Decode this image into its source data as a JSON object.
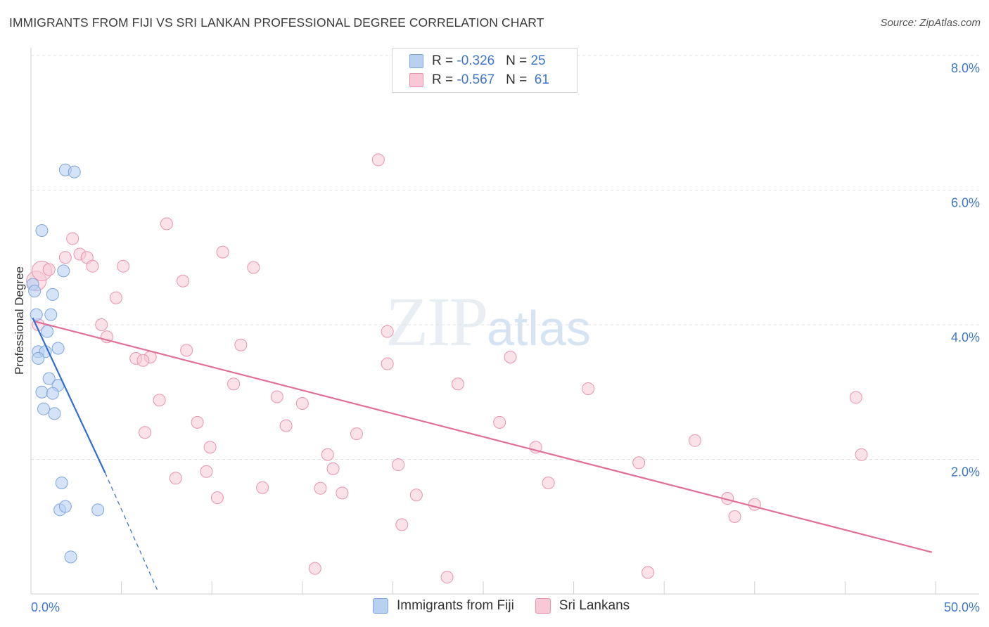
{
  "title": "IMMIGRANTS FROM FIJI VS SRI LANKAN PROFESSIONAL DEGREE CORRELATION CHART",
  "source": "Source: ZipAtlas.com",
  "watermark": {
    "zip": "ZIP",
    "atlas": "atlas"
  },
  "legend_top": {
    "rows": [
      {
        "r_label": "R = ",
        "r_value": "-0.326",
        "n_label": "N = ",
        "n_value": "25",
        "color": "#b8d1f1",
        "border": "#7fa6dc"
      },
      {
        "r_label": "R = ",
        "r_value": "-0.567",
        "n_label": "N = ",
        "n_value": " 61",
        "color": "#f8c8d6",
        "border": "#ea93ae"
      }
    ]
  },
  "chart_data": {
    "type": "scatter",
    "title": "IMMIGRANTS FROM FIJI VS SRI LANKAN PROFESSIONAL DEGREE CORRELATION CHART",
    "xlabel": "",
    "ylabel": "Professional Degree",
    "xlim": [
      0,
      50
    ],
    "ylim": [
      0,
      8
    ],
    "x_tick_labels": [
      "0.0%",
      "50.0%"
    ],
    "y_ticks": [
      2,
      4,
      6,
      8
    ],
    "y_tick_labels": [
      "2.0%",
      "4.0%",
      "6.0%",
      "8.0%"
    ],
    "x_minor_ticks": [
      0,
      5,
      10,
      15,
      20,
      25,
      30,
      35,
      40,
      45,
      50
    ],
    "grid": true,
    "legend_position": "bottom",
    "series": [
      {
        "name": "Immigrants from Fiji",
        "color": "#b8d1f1",
        "stroke": "#7fa6dc",
        "trend_color": "#2f6fd0",
        "trend": {
          "x_start": 0.1,
          "y_start": 4.1,
          "x_solid_end": 4.1,
          "y_solid_end": 1.8,
          "x_dash_end": 7.0,
          "y_dash_end": 0.05
        },
        "points": [
          [
            1.9,
            6.3
          ],
          [
            2.4,
            6.27
          ],
          [
            0.6,
            5.4
          ],
          [
            1.8,
            4.8
          ],
          [
            0.1,
            4.6
          ],
          [
            0.2,
            4.5
          ],
          [
            1.2,
            4.45
          ],
          [
            0.3,
            4.15
          ],
          [
            1.1,
            4.15
          ],
          [
            0.9,
            3.9
          ],
          [
            0.4,
            3.6
          ],
          [
            1.5,
            3.65
          ],
          [
            0.8,
            3.6
          ],
          [
            0.4,
            3.5
          ],
          [
            1.0,
            3.2
          ],
          [
            1.5,
            3.1
          ],
          [
            0.6,
            3.0
          ],
          [
            1.2,
            2.98
          ],
          [
            0.7,
            2.75
          ],
          [
            1.3,
            2.68
          ],
          [
            1.7,
            1.65
          ],
          [
            1.6,
            1.25
          ],
          [
            1.9,
            1.3
          ],
          [
            3.7,
            1.25
          ],
          [
            2.2,
            0.55
          ]
        ]
      },
      {
        "name": "Sri Lankans",
        "color": "#f8c8d6",
        "stroke": "#ea93ae",
        "trend_color": "#e06f99",
        "trend": {
          "x_start": 0.2,
          "y_start": 4.05,
          "x_end": 49.8,
          "y_end": 0.62
        },
        "points": [
          [
            19.2,
            6.45
          ],
          [
            7.5,
            5.5
          ],
          [
            2.3,
            5.28
          ],
          [
            10.6,
            5.08
          ],
          [
            2.7,
            5.05
          ],
          [
            1.9,
            5.0
          ],
          [
            3.1,
            5.0
          ],
          [
            1.0,
            4.82
          ],
          [
            3.4,
            4.87
          ],
          [
            5.1,
            4.87
          ],
          [
            12.3,
            4.85
          ],
          [
            8.4,
            4.65
          ],
          [
            4.7,
            4.4
          ],
          [
            0.4,
            4.0
          ],
          [
            3.9,
            4.0
          ],
          [
            4.2,
            3.82
          ],
          [
            19.7,
            3.9
          ],
          [
            11.6,
            3.7
          ],
          [
            8.6,
            3.62
          ],
          [
            6.6,
            3.52
          ],
          [
            5.8,
            3.5
          ],
          [
            6.2,
            3.47
          ],
          [
            26.5,
            3.52
          ],
          [
            19.7,
            3.42
          ],
          [
            11.2,
            3.12
          ],
          [
            23.6,
            3.12
          ],
          [
            30.8,
            3.05
          ],
          [
            13.6,
            2.93
          ],
          [
            45.6,
            2.92
          ],
          [
            7.1,
            2.88
          ],
          [
            15.0,
            2.83
          ],
          [
            9.2,
            2.55
          ],
          [
            25.9,
            2.55
          ],
          [
            14.1,
            2.5
          ],
          [
            6.3,
            2.4
          ],
          [
            18.0,
            2.38
          ],
          [
            36.7,
            2.28
          ],
          [
            9.9,
            2.18
          ],
          [
            27.9,
            2.18
          ],
          [
            16.4,
            2.07
          ],
          [
            45.9,
            2.07
          ],
          [
            33.6,
            1.95
          ],
          [
            20.3,
            1.92
          ],
          [
            16.7,
            1.86
          ],
          [
            9.7,
            1.82
          ],
          [
            8.0,
            1.72
          ],
          [
            28.6,
            1.65
          ],
          [
            12.8,
            1.58
          ],
          [
            16.0,
            1.57
          ],
          [
            17.2,
            1.5
          ],
          [
            21.3,
            1.47
          ],
          [
            10.3,
            1.43
          ],
          [
            38.5,
            1.42
          ],
          [
            40.0,
            1.33
          ],
          [
            38.9,
            1.15
          ],
          [
            20.5,
            1.03
          ],
          [
            15.7,
            0.38
          ],
          [
            23.0,
            0.25
          ],
          [
            34.1,
            0.32
          ]
        ],
        "big_points": [
          [
            0.3,
            4.65
          ],
          [
            0.6,
            4.8
          ]
        ]
      }
    ]
  },
  "legend_bottom": [
    {
      "label": "Immigrants from Fiji",
      "color": "#b8d1f1",
      "border": "#7fa6dc"
    },
    {
      "label": "Sri Lankans",
      "color": "#f8c8d6",
      "border": "#ea93ae"
    }
  ]
}
